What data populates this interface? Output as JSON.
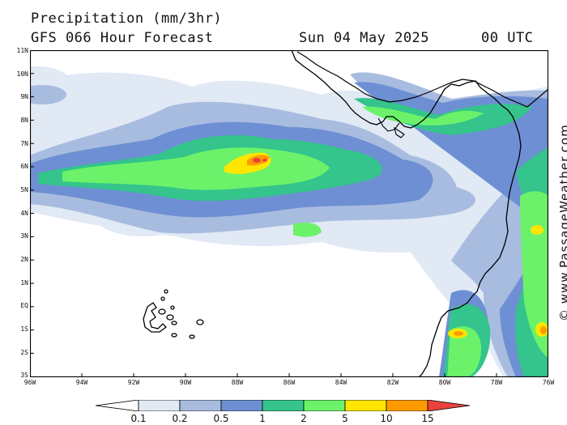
{
  "header": {
    "title": "Precipitation (mm/3hr)",
    "forecast": "GFS 066 Hour Forecast",
    "date": "Sun 04 May 2025",
    "time": "00 UTC"
  },
  "watermark": "© www.PassageWeather.com",
  "axes": {
    "y_ticks": [
      "11N",
      "10N",
      "9N",
      "8N",
      "7N",
      "6N",
      "5N",
      "4N",
      "3N",
      "2N",
      "1N",
      "EQ",
      "1S",
      "2S",
      "3S"
    ],
    "x_ticks": [
      "96W",
      "94W",
      "92W",
      "90W",
      "88W",
      "86W",
      "84W",
      "82W",
      "80W",
      "78W",
      "76W"
    ]
  },
  "legend": {
    "labels": [
      "0.1",
      "0.2",
      "0.5",
      "1",
      "2",
      "5",
      "10",
      "15"
    ],
    "colors": [
      "#ffffff",
      "#e1e9f5",
      "#a8bce0",
      "#6e8fd3",
      "#34c48c",
      "#6cf26a",
      "#ffe600",
      "#ff9a00",
      "#e8423a"
    ]
  },
  "colors": {
    "land": "#ffffff",
    "coast": "#000000",
    "frame": "#000000"
  }
}
